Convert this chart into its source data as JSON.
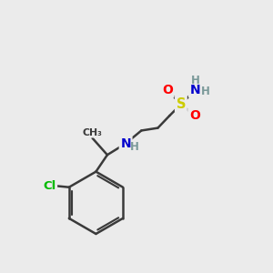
{
  "bg_color": "#ebebeb",
  "bond_color": "#3a3a3a",
  "atom_colors": {
    "O": "#ff0000",
    "N": "#0000cc",
    "S": "#cccc00",
    "Cl": "#00bb00",
    "H": "#7a9999",
    "C": "#3a3a3a"
  },
  "figsize": [
    3.0,
    3.0
  ],
  "dpi": 100
}
